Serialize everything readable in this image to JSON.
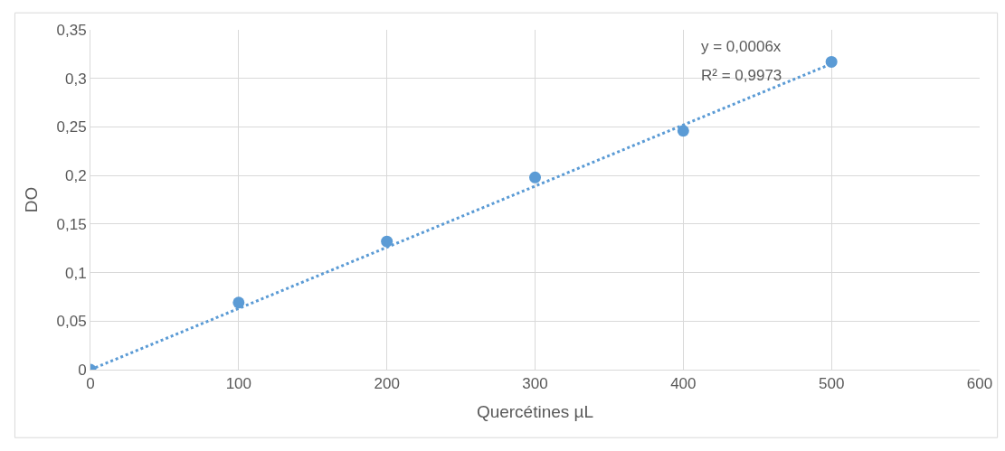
{
  "chart_data": {
    "type": "scatter",
    "xlabel": "Quercétines µL",
    "ylabel": "DO",
    "x": [
      0,
      100,
      200,
      300,
      400,
      500
    ],
    "series": [
      {
        "color": "#5b9bd5",
        "values": [
          0,
          0.069,
          0.132,
          0.198,
          0.246,
          0.317
        ],
        "marker": "circle"
      },
      {
        "type": "line",
        "color": "#5b9bd5",
        "x": [
          0,
          500
        ],
        "values": [
          0,
          0.315
        ],
        "line_style": "dotted",
        "marker": "none"
      }
    ],
    "xlim": [
      0,
      600
    ],
    "xticks": [
      0,
      100,
      200,
      300,
      400,
      500,
      600
    ],
    "ylim": [
      0,
      0.35
    ],
    "yticks": [
      0,
      {
        "value": 0.05,
        "label": "0,05"
      },
      {
        "value": 0.1,
        "label": "0,1"
      },
      {
        "value": 0.15,
        "label": "0,15"
      },
      {
        "value": 0.2,
        "label": "0,2"
      },
      {
        "value": 0.25,
        "label": "0,25"
      },
      {
        "value": 0.3,
        "label": "0,3"
      },
      {
        "value": 0.35,
        "label": "0,35"
      }
    ],
    "grid": true,
    "annotations": [
      "y = 0,0006x",
      "R² = 0,9973"
    ]
  }
}
